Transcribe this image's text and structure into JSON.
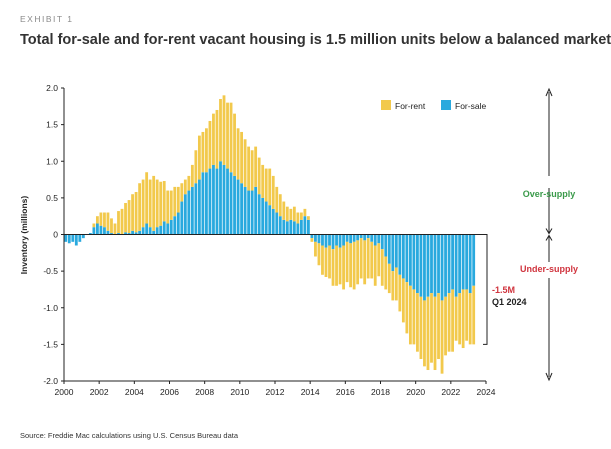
{
  "exhibit_label": "EXHIBIT 1",
  "source": "Source: Freddie Mac calculations using U.S. Census Bureau data",
  "colors": {
    "for_rent": "#f2c94c",
    "for_sale": "#29a9de",
    "over_supply": "#3a9a4a",
    "under_supply": "#d0343e"
  },
  "chart_data": {
    "type": "bar",
    "stacked": true,
    "title": "Total for-sale and for-rent vacant housing is 1.5 million units below a balanced market",
    "ylabel": "Inventory (millions)",
    "xlabel": "",
    "ylim": [
      -2.0,
      2.0
    ],
    "yticks": [
      "2.0",
      "1.5",
      "1.0",
      "0.5",
      "0",
      "-0.5",
      "-1.0",
      "-1.5",
      "-2.0"
    ],
    "xticks": [
      "2000",
      "2002",
      "2004",
      "2006",
      "2008",
      "2010",
      "2012",
      "2014",
      "2016",
      "2018",
      "2020",
      "2022",
      "2024"
    ],
    "x_start": 2000,
    "x_end": 2024,
    "grid": false,
    "legend_position": "top-right",
    "annotations": {
      "over_supply": "Over-supply",
      "under_supply": "Under-supply",
      "value_label": "-1.5M",
      "period_label": "Q1 2024"
    },
    "series": [
      {
        "name": "For-sale",
        "values": [
          -0.1,
          -0.12,
          -0.1,
          -0.15,
          -0.1,
          -0.05,
          0.0,
          0.02,
          0.1,
          0.15,
          0.12,
          0.1,
          0.05,
          0.02,
          0.0,
          0.02,
          0.0,
          0.03,
          0.02,
          0.05,
          0.03,
          0.05,
          0.1,
          0.15,
          0.1,
          0.05,
          0.1,
          0.12,
          0.18,
          0.15,
          0.2,
          0.25,
          0.3,
          0.45,
          0.55,
          0.6,
          0.65,
          0.7,
          0.75,
          0.85,
          0.85,
          0.9,
          0.95,
          0.9,
          1.0,
          0.95,
          0.9,
          0.85,
          0.8,
          0.75,
          0.7,
          0.65,
          0.6,
          0.6,
          0.65,
          0.55,
          0.5,
          0.45,
          0.4,
          0.35,
          0.3,
          0.25,
          0.2,
          0.18,
          0.2,
          0.18,
          0.15,
          0.2,
          0.25,
          0.2,
          -0.05,
          -0.1,
          -0.12,
          -0.15,
          -0.18,
          -0.15,
          -0.2,
          -0.15,
          -0.18,
          -0.15,
          -0.1,
          -0.12,
          -0.1,
          -0.08,
          -0.05,
          -0.08,
          -0.05,
          -0.1,
          -0.15,
          -0.12,
          -0.2,
          -0.3,
          -0.4,
          -0.5,
          -0.45,
          -0.55,
          -0.6,
          -0.65,
          -0.7,
          -0.75,
          -0.8,
          -0.85,
          -0.9,
          -0.85,
          -0.8,
          -0.85,
          -0.8,
          -0.9,
          -0.85,
          -0.8,
          -0.75,
          -0.85,
          -0.8,
          -0.75,
          -0.75,
          -0.8,
          -0.7
        ]
      },
      {
        "name": "For-rent",
        "values": [
          0.0,
          0.0,
          0.0,
          0.0,
          0.0,
          0.0,
          0.0,
          0.0,
          0.05,
          0.1,
          0.18,
          0.2,
          0.25,
          0.2,
          0.15,
          0.3,
          0.35,
          0.4,
          0.45,
          0.5,
          0.55,
          0.65,
          0.65,
          0.7,
          0.65,
          0.75,
          0.65,
          0.6,
          0.55,
          0.45,
          0.4,
          0.4,
          0.35,
          0.25,
          0.2,
          0.2,
          0.3,
          0.45,
          0.6,
          0.55,
          0.6,
          0.65,
          0.7,
          0.8,
          0.85,
          0.95,
          0.9,
          0.95,
          0.85,
          0.7,
          0.7,
          0.65,
          0.6,
          0.55,
          0.55,
          0.5,
          0.45,
          0.45,
          0.5,
          0.45,
          0.35,
          0.3,
          0.25,
          0.2,
          0.15,
          0.2,
          0.15,
          0.1,
          0.1,
          0.05,
          -0.05,
          -0.2,
          -0.3,
          -0.4,
          -0.4,
          -0.45,
          -0.5,
          -0.55,
          -0.5,
          -0.6,
          -0.55,
          -0.6,
          -0.65,
          -0.6,
          -0.55,
          -0.6,
          -0.55,
          -0.5,
          -0.55,
          -0.45,
          -0.5,
          -0.45,
          -0.4,
          -0.4,
          -0.45,
          -0.5,
          -0.6,
          -0.7,
          -0.8,
          -0.75,
          -0.8,
          -0.85,
          -0.9,
          -1.0,
          -0.95,
          -1.0,
          -0.9,
          -1.0,
          -0.8,
          -0.8,
          -0.85,
          -0.6,
          -0.7,
          -0.8,
          -0.7,
          -0.7,
          -0.8
        ]
      }
    ]
  }
}
